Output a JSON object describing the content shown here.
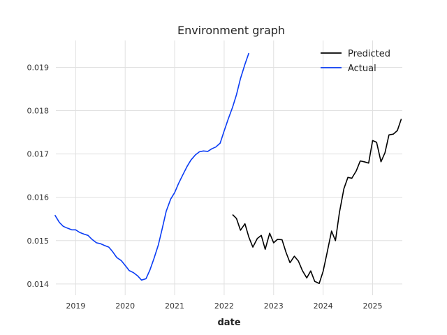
{
  "chart_data": {
    "type": "line",
    "title": "Environment graph",
    "xlabel": "date",
    "ylabel": "",
    "xlim": [
      2018.6,
      2025.6
    ],
    "ylim": [
      0.01374,
      0.01962
    ],
    "grid": true,
    "legend_position": "top-right",
    "x_ticks": [
      2019,
      2020,
      2021,
      2022,
      2023,
      2024,
      2025
    ],
    "x_tick_labels": [
      "2019",
      "2020",
      "2021",
      "2022",
      "2023",
      "2024",
      "2025"
    ],
    "y_ticks": [
      0.014,
      0.015,
      0.016,
      0.017,
      0.018,
      0.019
    ],
    "y_tick_labels": [
      "0.014",
      "0.015",
      "0.016",
      "0.017",
      "0.018",
      "0.019"
    ],
    "series": [
      {
        "name": "Predicted",
        "color": "#000000",
        "points": [
          [
            2022.17,
            0.0156
          ],
          [
            2022.25,
            0.01551
          ],
          [
            2022.33,
            0.01524
          ],
          [
            2022.42,
            0.01539
          ],
          [
            2022.5,
            0.01508
          ],
          [
            2022.58,
            0.01485
          ],
          [
            2022.67,
            0.01505
          ],
          [
            2022.75,
            0.01512
          ],
          [
            2022.83,
            0.0148
          ],
          [
            2022.92,
            0.01517
          ],
          [
            2023.0,
            0.01495
          ],
          [
            2023.08,
            0.01503
          ],
          [
            2023.17,
            0.01502
          ],
          [
            2023.25,
            0.01473
          ],
          [
            2023.33,
            0.01449
          ],
          [
            2023.42,
            0.01464
          ],
          [
            2023.5,
            0.01453
          ],
          [
            2023.58,
            0.01431
          ],
          [
            2023.67,
            0.01414
          ],
          [
            2023.75,
            0.0143
          ],
          [
            2023.83,
            0.01406
          ],
          [
            2023.92,
            0.01401
          ],
          [
            2024.0,
            0.01429
          ],
          [
            2024.08,
            0.01472
          ],
          [
            2024.17,
            0.01522
          ],
          [
            2024.25,
            0.015
          ],
          [
            2024.33,
            0.01565
          ],
          [
            2024.42,
            0.0162
          ],
          [
            2024.5,
            0.01646
          ],
          [
            2024.58,
            0.01644
          ],
          [
            2024.67,
            0.01661
          ],
          [
            2024.75,
            0.01684
          ],
          [
            2024.83,
            0.01682
          ],
          [
            2024.92,
            0.01679
          ],
          [
            2025.0,
            0.01731
          ],
          [
            2025.08,
            0.01727
          ],
          [
            2025.17,
            0.01682
          ],
          [
            2025.25,
            0.01703
          ],
          [
            2025.33,
            0.01744
          ],
          [
            2025.42,
            0.01746
          ],
          [
            2025.5,
            0.01754
          ],
          [
            2025.58,
            0.01781
          ]
        ]
      },
      {
        "name": "Actual",
        "color": "#0a3cf5",
        "points": [
          [
            2018.58,
            0.01559
          ],
          [
            2018.67,
            0.01542
          ],
          [
            2018.75,
            0.01533
          ],
          [
            2018.83,
            0.01529
          ],
          [
            2018.92,
            0.01525
          ],
          [
            2019.0,
            0.01525
          ],
          [
            2019.08,
            0.01519
          ],
          [
            2019.17,
            0.01515
          ],
          [
            2019.25,
            0.01512
          ],
          [
            2019.33,
            0.01503
          ],
          [
            2019.42,
            0.01495
          ],
          [
            2019.5,
            0.01493
          ],
          [
            2019.58,
            0.01489
          ],
          [
            2019.67,
            0.01485
          ],
          [
            2019.75,
            0.01474
          ],
          [
            2019.83,
            0.01461
          ],
          [
            2019.92,
            0.01454
          ],
          [
            2020.0,
            0.01443
          ],
          [
            2020.08,
            0.01431
          ],
          [
            2020.17,
            0.01426
          ],
          [
            2020.25,
            0.01419
          ],
          [
            2020.33,
            0.01409
          ],
          [
            2020.42,
            0.01412
          ],
          [
            2020.5,
            0.01432
          ],
          [
            2020.58,
            0.01458
          ],
          [
            2020.67,
            0.0149
          ],
          [
            2020.75,
            0.01528
          ],
          [
            2020.83,
            0.01568
          ],
          [
            2020.92,
            0.01596
          ],
          [
            2021.0,
            0.01611
          ],
          [
            2021.08,
            0.01632
          ],
          [
            2021.17,
            0.01653
          ],
          [
            2021.25,
            0.01671
          ],
          [
            2021.33,
            0.01686
          ],
          [
            2021.42,
            0.01698
          ],
          [
            2021.5,
            0.01705
          ],
          [
            2021.58,
            0.01707
          ],
          [
            2021.67,
            0.01706
          ],
          [
            2021.75,
            0.01712
          ],
          [
            2021.83,
            0.01716
          ],
          [
            2021.92,
            0.01725
          ],
          [
            2022.0,
            0.01753
          ],
          [
            2022.08,
            0.0178
          ],
          [
            2022.17,
            0.01808
          ],
          [
            2022.25,
            0.01837
          ],
          [
            2022.33,
            0.01874
          ],
          [
            2022.42,
            0.01907
          ],
          [
            2022.5,
            0.01933
          ]
        ]
      }
    ]
  }
}
